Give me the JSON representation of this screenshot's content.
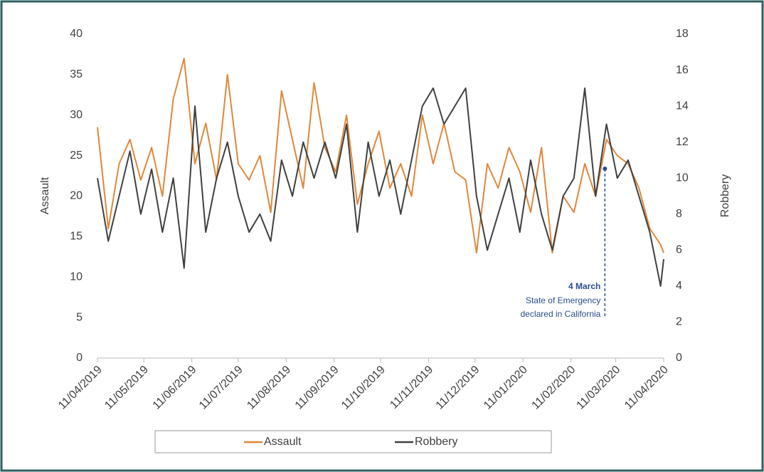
{
  "chart_data": {
    "type": "line",
    "x": [
      "11/04/2019",
      "18/04/2019",
      "25/04/2019",
      "02/05/2019",
      "09/05/2019",
      "16/05/2019",
      "23/05/2019",
      "30/05/2019",
      "06/06/2019",
      "13/06/2019",
      "20/06/2019",
      "27/06/2019",
      "04/07/2019",
      "11/07/2019",
      "18/07/2019",
      "25/07/2019",
      "01/08/2019",
      "08/08/2019",
      "15/08/2019",
      "22/08/2019",
      "29/08/2019",
      "05/09/2019",
      "12/09/2019",
      "19/09/2019",
      "26/09/2019",
      "03/10/2019",
      "10/10/2019",
      "17/10/2019",
      "24/10/2019",
      "31/10/2019",
      "07/11/2019",
      "14/11/2019",
      "21/11/2019",
      "28/11/2019",
      "05/12/2019",
      "12/12/2019",
      "19/12/2019",
      "26/12/2019",
      "02/01/2020",
      "09/01/2020",
      "16/01/2020",
      "23/01/2020",
      "30/01/2020",
      "06/02/2020",
      "13/02/2020",
      "20/02/2020",
      "27/02/2020",
      "05/03/2020",
      "12/03/2020",
      "19/03/2020",
      "26/03/2020",
      "02/04/2020",
      "09/04/2020",
      "11/04/2020"
    ],
    "series": [
      {
        "name": "Assault",
        "color": "#e0873a",
        "values": [
          28.5,
          16,
          24,
          27,
          22,
          26,
          20,
          32,
          37,
          24,
          29,
          22,
          35,
          24,
          22,
          25,
          18,
          33,
          27,
          21,
          34,
          26,
          23,
          30,
          19,
          24,
          28,
          21,
          24,
          20,
          30,
          24,
          29,
          23,
          22,
          13,
          24,
          21,
          26,
          23,
          18,
          26,
          13,
          20,
          18,
          24,
          20,
          27,
          25,
          24,
          21,
          16,
          14,
          13
        ]
      },
      {
        "name": "Robbery",
        "color": "#404040",
        "axis": "y2",
        "values": [
          10,
          6.5,
          9,
          11.5,
          8,
          10.5,
          7,
          10,
          5,
          14,
          7,
          10,
          12,
          9,
          7,
          8,
          6.5,
          11,
          9,
          12,
          10,
          12,
          10,
          13,
          7,
          12,
          9,
          11,
          8,
          11,
          14,
          15,
          13,
          14,
          15,
          9,
          6,
          8,
          10,
          7,
          11,
          8,
          6,
          9,
          10,
          15,
          9,
          13,
          10,
          11,
          9,
          7,
          4,
          5.5
        ]
      }
    ],
    "ylabel": "Assault",
    "y2label": "Robbery",
    "ylim": [
      0,
      40
    ],
    "yticks": [
      0,
      5,
      10,
      15,
      20,
      25,
      30,
      35,
      40
    ],
    "y2lim": [
      0,
      18
    ],
    "y2ticks": [
      0,
      2,
      4,
      6,
      8,
      10,
      12,
      14,
      16,
      18
    ],
    "xticks": [
      "11/04/2019",
      "11/05/2019",
      "11/06/2019",
      "11/07/2019",
      "11/08/2019",
      "11/09/2019",
      "11/10/2019",
      "11/11/2019",
      "11/12/2019",
      "11/01/2020",
      "11/02/2020",
      "11/03/2020",
      "11/04/2020"
    ],
    "annotation": {
      "x": "04/03/2020",
      "label": "4 March",
      "text": [
        "State of Emergency",
        "declared in California"
      ]
    },
    "legend": "bottom"
  }
}
